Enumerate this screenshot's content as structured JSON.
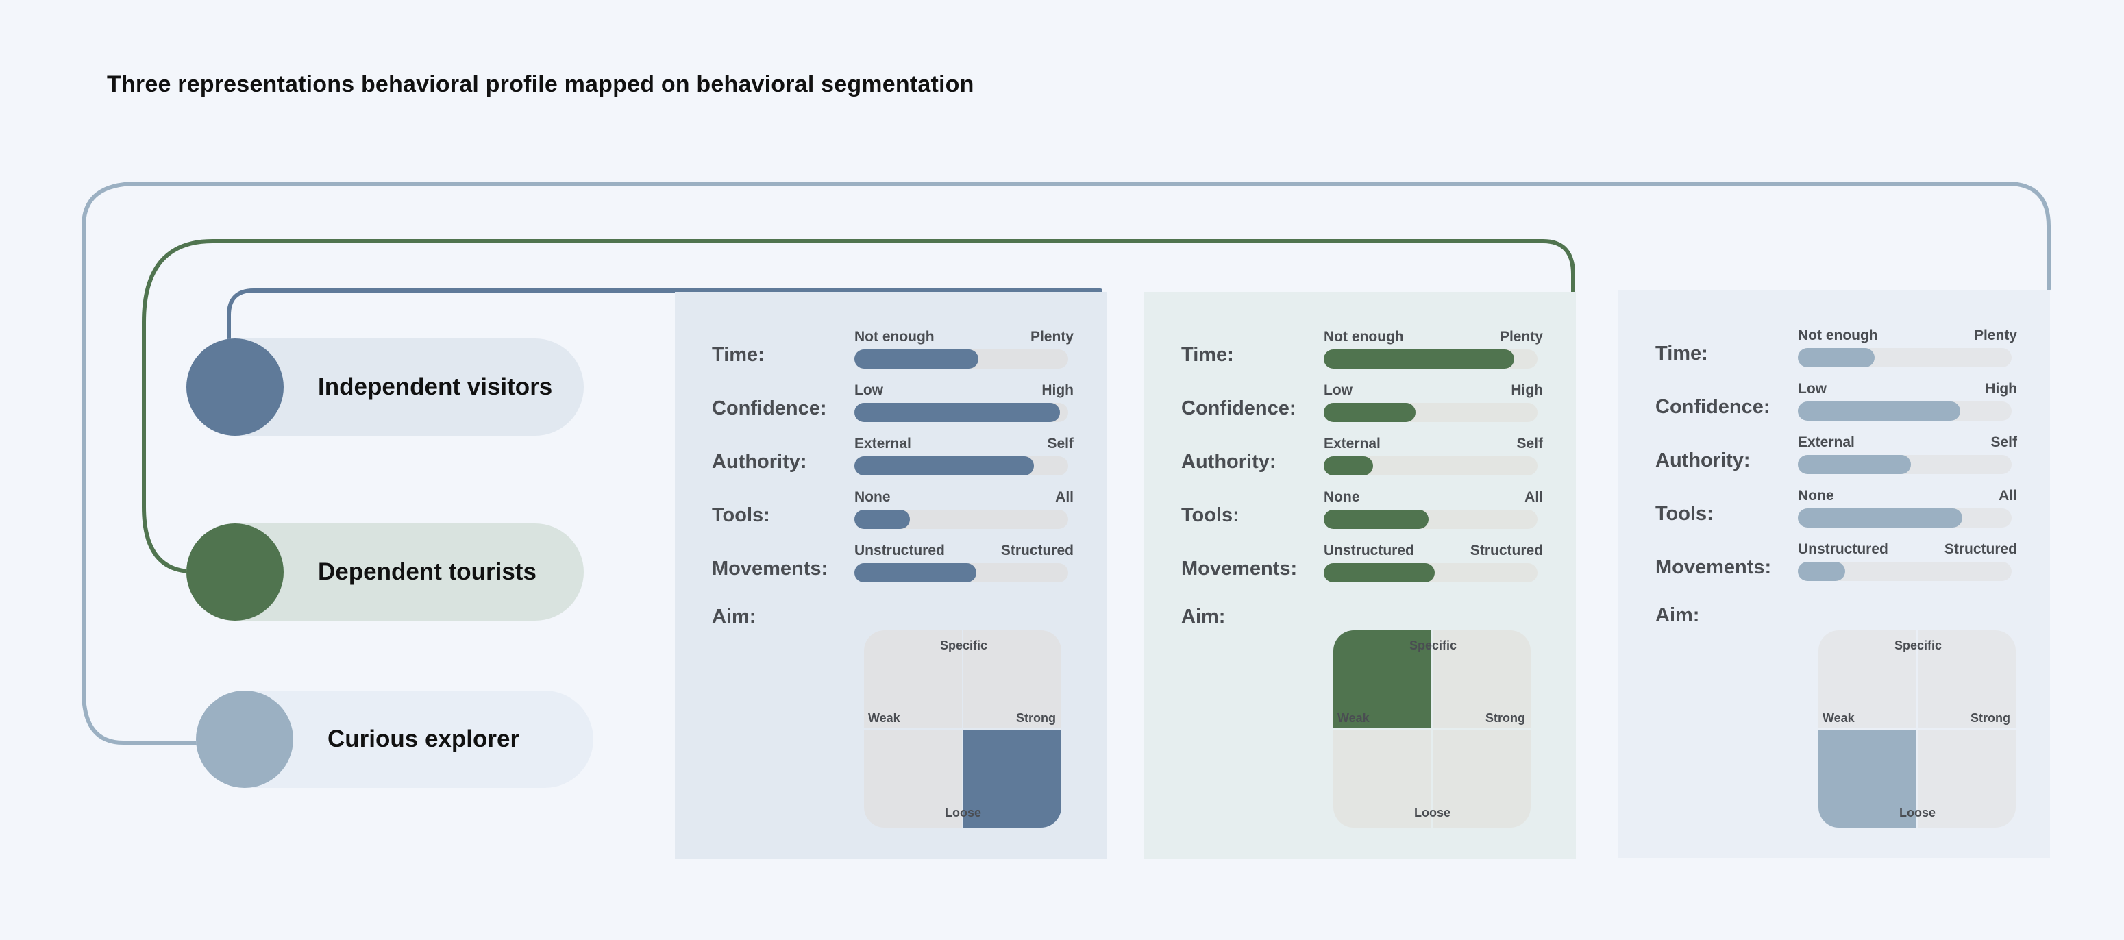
{
  "title": "Three representations behavioral profile mapped on behavioral segmentation",
  "colors": {
    "independent": "#5f7a99",
    "dependent": "#50744f",
    "curious": "#9bb0c2"
  },
  "segments": [
    {
      "id": "independent",
      "label": "Independent visitors",
      "dot_color": "#5f7a99",
      "pill_bg": "#e1e8f0"
    },
    {
      "id": "dependent",
      "label": "Dependent tourists",
      "dot_color": "#50744f",
      "pill_bg": "#d9e3df"
    },
    {
      "id": "curious",
      "label": "Curious explorer",
      "dot_color": "#9bb0c2",
      "pill_bg": "#e8eef6"
    }
  ],
  "profiles": [
    {
      "segment": "Independent visitors",
      "panel_bg": "#e2e9f1",
      "fill_color": "#5f7a99",
      "track_color": "#e0e1e3",
      "metrics": [
        {
          "name": "Time:",
          "low": "Not enough",
          "high": "Plenty",
          "value": 0.58
        },
        {
          "name": "Confidence:",
          "low": "Low",
          "high": "High",
          "value": 0.96
        },
        {
          "name": "Authority:",
          "low": "External",
          "high": "Self",
          "value": 0.84
        },
        {
          "name": "Tools:",
          "low": "None",
          "high": "All",
          "value": 0.26
        },
        {
          "name": "Movements:",
          "low": "Unstructured",
          "high": "Structured",
          "value": 0.57
        }
      ],
      "aim": {
        "label": "Aim:",
        "top": "Specific",
        "bottom": "Loose",
        "left": "Weak",
        "right": "Strong",
        "selected": "bottom-right",
        "quad_color": "#e1e2e4"
      }
    },
    {
      "segment": "Dependent tourists",
      "panel_bg": "#e6eeef",
      "fill_color": "#50744f",
      "track_color": "#e3e5e2",
      "metrics": [
        {
          "name": "Time:",
          "low": "Not enough",
          "high": "Plenty",
          "value": 0.89
        },
        {
          "name": "Confidence:",
          "low": "Low",
          "high": "High",
          "value": 0.43
        },
        {
          "name": "Authority:",
          "low": "External",
          "high": "Self",
          "value": 0.23
        },
        {
          "name": "Tools:",
          "low": "None",
          "high": "All",
          "value": 0.49
        },
        {
          "name": "Movements:",
          "low": "Unstructured",
          "high": "Structured",
          "value": 0.52
        }
      ],
      "aim": {
        "label": "Aim:",
        "top": "Specific",
        "bottom": "Loose",
        "left": "Weak",
        "right": "Strong",
        "selected": "top-left",
        "quad_color": "#e3e5e2"
      }
    },
    {
      "segment": "Curious explorer",
      "panel_bg": "#eaeff6",
      "fill_color": "#9bb0c2",
      "track_color": "#e4e6e9",
      "metrics": [
        {
          "name": "Time:",
          "low": "Not enough",
          "high": "Plenty",
          "value": 0.36
        },
        {
          "name": "Confidence:",
          "low": "Low",
          "high": "High",
          "value": 0.76
        },
        {
          "name": "Authority:",
          "low": "External",
          "high": "Self",
          "value": 0.53
        },
        {
          "name": "Tools:",
          "low": "None",
          "high": "All",
          "value": 0.77
        },
        {
          "name": "Movements:",
          "low": "Unstructured",
          "high": "Structured",
          "value": 0.22
        }
      ],
      "aim": {
        "label": "Aim:",
        "top": "Specific",
        "bottom": "Loose",
        "left": "Weak",
        "right": "Strong",
        "selected": "bottom-left",
        "quad_color": "#e5e7ea"
      }
    }
  ]
}
